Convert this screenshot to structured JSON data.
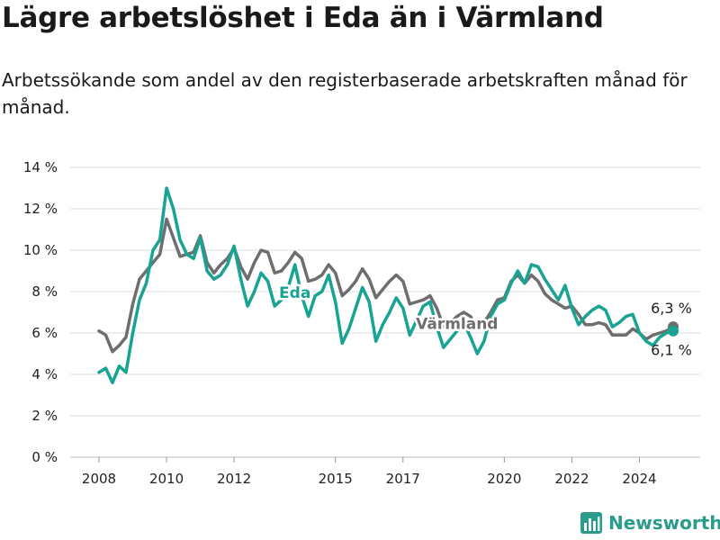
{
  "title": "Lägre arbetslöshet i Eda än i Värmland",
  "subtitle": "Arbetssökande som andel av den registerbaserade arbetskraften månad för månad.",
  "brand": "Newsworthy",
  "colors": {
    "eda": "#18a392",
    "varmland": "#6e6e6e",
    "grid": "#dcdcdc",
    "brand": "#2a9c8b"
  },
  "chart_data": {
    "type": "line",
    "ylim": [
      0,
      14
    ],
    "yticks": [
      0,
      2,
      4,
      6,
      8,
      10,
      12,
      14
    ],
    "ytick_labels": [
      "0 %",
      "2 %",
      "4 %",
      "6 %",
      "8 %",
      "10 %",
      "12 %",
      "14 %"
    ],
    "xticks": [
      2008,
      2010,
      2012,
      2015,
      2017,
      2020,
      2022,
      2024
    ],
    "xtick_labels": [
      "2008",
      "2010",
      "2012",
      "2015",
      "2017",
      "2020",
      "2022",
      "2024"
    ],
    "grid": true,
    "series": [
      {
        "name": "Värmland",
        "end_label": "6,3 %",
        "points": [
          [
            2008.0,
            6.1
          ],
          [
            2008.2,
            5.9
          ],
          [
            2008.4,
            5.1
          ],
          [
            2008.6,
            5.4
          ],
          [
            2008.8,
            5.8
          ],
          [
            2009.0,
            7.4
          ],
          [
            2009.2,
            8.6
          ],
          [
            2009.4,
            9.0
          ],
          [
            2009.6,
            9.4
          ],
          [
            2009.8,
            9.8
          ],
          [
            2010.0,
            11.5
          ],
          [
            2010.2,
            10.6
          ],
          [
            2010.4,
            9.7
          ],
          [
            2010.6,
            9.8
          ],
          [
            2010.8,
            9.9
          ],
          [
            2011.0,
            10.7
          ],
          [
            2011.2,
            9.4
          ],
          [
            2011.4,
            8.9
          ],
          [
            2011.6,
            9.3
          ],
          [
            2011.8,
            9.6
          ],
          [
            2012.0,
            10.1
          ],
          [
            2012.2,
            9.2
          ],
          [
            2012.4,
            8.6
          ],
          [
            2012.6,
            9.4
          ],
          [
            2012.8,
            10.0
          ],
          [
            2013.0,
            9.9
          ],
          [
            2013.2,
            8.9
          ],
          [
            2013.4,
            9.0
          ],
          [
            2013.6,
            9.4
          ],
          [
            2013.8,
            9.9
          ],
          [
            2014.0,
            9.6
          ],
          [
            2014.2,
            8.5
          ],
          [
            2014.4,
            8.6
          ],
          [
            2014.6,
            8.8
          ],
          [
            2014.8,
            9.3
          ],
          [
            2015.0,
            8.9
          ],
          [
            2015.2,
            7.8
          ],
          [
            2015.4,
            8.1
          ],
          [
            2015.6,
            8.5
          ],
          [
            2015.8,
            9.1
          ],
          [
            2016.0,
            8.6
          ],
          [
            2016.2,
            7.7
          ],
          [
            2016.4,
            8.1
          ],
          [
            2016.6,
            8.5
          ],
          [
            2016.8,
            8.8
          ],
          [
            2017.0,
            8.5
          ],
          [
            2017.2,
            7.4
          ],
          [
            2017.4,
            7.5
          ],
          [
            2017.6,
            7.6
          ],
          [
            2017.8,
            7.8
          ],
          [
            2018.0,
            7.2
          ],
          [
            2018.2,
            6.3
          ],
          [
            2018.4,
            6.5
          ],
          [
            2018.6,
            6.8
          ],
          [
            2018.8,
            7.0
          ],
          [
            2019.0,
            6.8
          ],
          [
            2019.2,
            6.2
          ],
          [
            2019.4,
            6.5
          ],
          [
            2019.6,
            7.0
          ],
          [
            2019.8,
            7.6
          ],
          [
            2020.0,
            7.7
          ],
          [
            2020.2,
            8.5
          ],
          [
            2020.4,
            8.8
          ],
          [
            2020.6,
            8.4
          ],
          [
            2020.8,
            8.8
          ],
          [
            2021.0,
            8.5
          ],
          [
            2021.2,
            7.9
          ],
          [
            2021.4,
            7.6
          ],
          [
            2021.6,
            7.4
          ],
          [
            2021.8,
            7.2
          ],
          [
            2022.0,
            7.3
          ],
          [
            2022.2,
            6.9
          ],
          [
            2022.4,
            6.4
          ],
          [
            2022.6,
            6.4
          ],
          [
            2022.8,
            6.5
          ],
          [
            2023.0,
            6.4
          ],
          [
            2023.2,
            5.9
          ],
          [
            2023.4,
            5.9
          ],
          [
            2023.6,
            5.9
          ],
          [
            2023.8,
            6.2
          ],
          [
            2024.0,
            6.0
          ],
          [
            2024.2,
            5.7
          ],
          [
            2024.4,
            5.9
          ],
          [
            2024.6,
            6.0
          ],
          [
            2024.8,
            6.1
          ],
          [
            2025.0,
            6.3
          ]
        ]
      },
      {
        "name": "Eda",
        "end_label": "6,1 %",
        "points": [
          [
            2008.0,
            4.1
          ],
          [
            2008.2,
            4.3
          ],
          [
            2008.4,
            3.6
          ],
          [
            2008.6,
            4.4
          ],
          [
            2008.8,
            4.1
          ],
          [
            2009.0,
            6.0
          ],
          [
            2009.2,
            7.6
          ],
          [
            2009.4,
            8.4
          ],
          [
            2009.6,
            10.0
          ],
          [
            2009.8,
            10.5
          ],
          [
            2010.0,
            13.0
          ],
          [
            2010.2,
            12.0
          ],
          [
            2010.4,
            10.5
          ],
          [
            2010.6,
            9.8
          ],
          [
            2010.8,
            9.6
          ],
          [
            2011.0,
            10.6
          ],
          [
            2011.2,
            9.0
          ],
          [
            2011.4,
            8.6
          ],
          [
            2011.6,
            8.8
          ],
          [
            2011.8,
            9.3
          ],
          [
            2012.0,
            10.2
          ],
          [
            2012.2,
            8.6
          ],
          [
            2012.4,
            7.3
          ],
          [
            2012.6,
            8.0
          ],
          [
            2012.8,
            8.9
          ],
          [
            2013.0,
            8.5
          ],
          [
            2013.2,
            7.3
          ],
          [
            2013.4,
            7.6
          ],
          [
            2013.6,
            8.2
          ],
          [
            2013.8,
            9.3
          ],
          [
            2014.0,
            7.8
          ],
          [
            2014.2,
            6.8
          ],
          [
            2014.4,
            7.8
          ],
          [
            2014.6,
            8.0
          ],
          [
            2014.8,
            8.8
          ],
          [
            2015.0,
            7.5
          ],
          [
            2015.2,
            5.5
          ],
          [
            2015.4,
            6.2
          ],
          [
            2015.6,
            7.2
          ],
          [
            2015.8,
            8.2
          ],
          [
            2016.0,
            7.5
          ],
          [
            2016.2,
            5.6
          ],
          [
            2016.4,
            6.4
          ],
          [
            2016.6,
            7.0
          ],
          [
            2016.8,
            7.7
          ],
          [
            2017.0,
            7.2
          ],
          [
            2017.2,
            5.9
          ],
          [
            2017.4,
            6.6
          ],
          [
            2017.6,
            7.3
          ],
          [
            2017.8,
            7.5
          ],
          [
            2018.0,
            6.3
          ],
          [
            2018.2,
            5.3
          ],
          [
            2018.4,
            5.7
          ],
          [
            2018.6,
            6.1
          ],
          [
            2018.8,
            6.5
          ],
          [
            2019.0,
            5.8
          ],
          [
            2019.2,
            5.0
          ],
          [
            2019.4,
            5.6
          ],
          [
            2019.6,
            6.8
          ],
          [
            2019.8,
            7.4
          ],
          [
            2020.0,
            7.6
          ],
          [
            2020.2,
            8.4
          ],
          [
            2020.4,
            9.0
          ],
          [
            2020.6,
            8.4
          ],
          [
            2020.8,
            9.3
          ],
          [
            2021.0,
            9.2
          ],
          [
            2021.2,
            8.6
          ],
          [
            2021.4,
            8.1
          ],
          [
            2021.6,
            7.6
          ],
          [
            2021.8,
            8.3
          ],
          [
            2022.0,
            7.2
          ],
          [
            2022.2,
            6.4
          ],
          [
            2022.4,
            6.8
          ],
          [
            2022.6,
            7.1
          ],
          [
            2022.8,
            7.3
          ],
          [
            2023.0,
            7.1
          ],
          [
            2023.2,
            6.3
          ],
          [
            2023.4,
            6.5
          ],
          [
            2023.6,
            6.8
          ],
          [
            2023.8,
            6.9
          ],
          [
            2024.0,
            6.0
          ],
          [
            2024.2,
            5.6
          ],
          [
            2024.4,
            5.4
          ],
          [
            2024.6,
            5.8
          ],
          [
            2024.8,
            6.0
          ],
          [
            2025.0,
            6.1
          ]
        ]
      }
    ]
  }
}
